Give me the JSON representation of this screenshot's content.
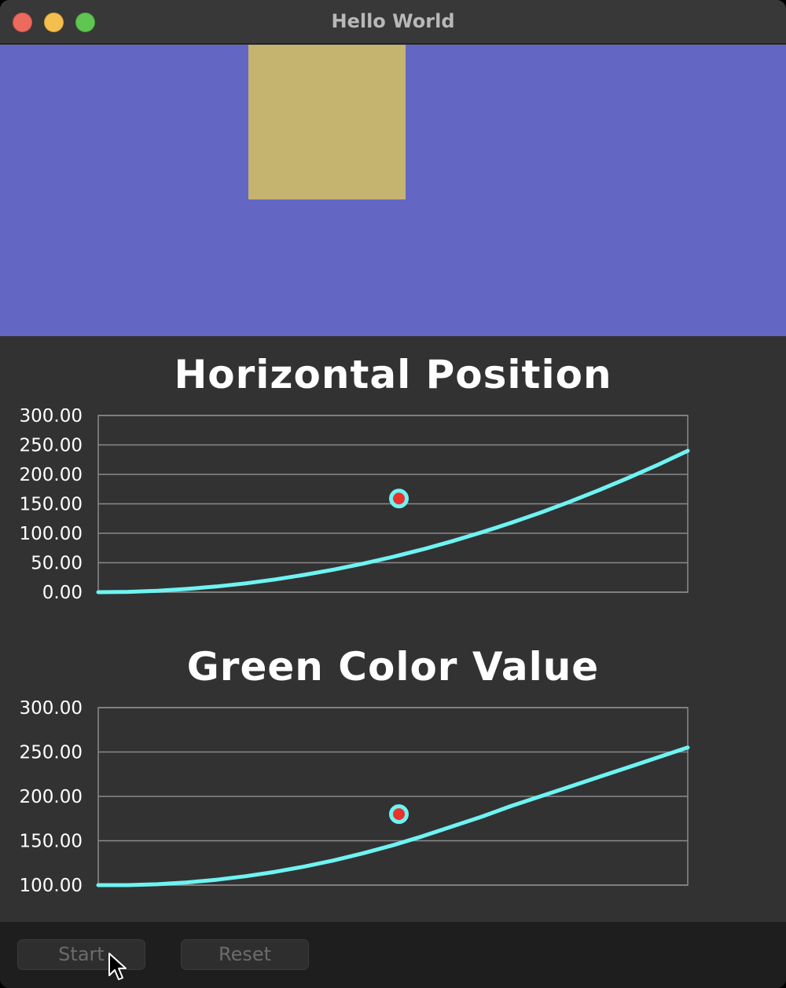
{
  "window": {
    "title": "Hello World"
  },
  "canvas": {
    "background": "#6367c3",
    "square_color": "#c5b46f"
  },
  "chart_data": [
    {
      "type": "line",
      "title": "Horizontal Position",
      "xlabel": "",
      "ylabel": "",
      "ylim": [
        0,
        300
      ],
      "yticks": [
        "0.00",
        "50.00",
        "100.00",
        "150.00",
        "200.00",
        "250.00",
        "300.00"
      ],
      "x": [
        0,
        0.05,
        0.1,
        0.15,
        0.2,
        0.25,
        0.3,
        0.35,
        0.4,
        0.45,
        0.5,
        0.55,
        0.6,
        0.65,
        0.7,
        0.75,
        0.8,
        0.85,
        0.9,
        0.95,
        1.0
      ],
      "series": [
        {
          "values": [
            0,
            0.6,
            2.4,
            5.4,
            9.6,
            15,
            21.6,
            29.4,
            38.4,
            48.6,
            60,
            72.6,
            86.4,
            101.4,
            117.6,
            135,
            153.6,
            173.4,
            194.4,
            216.6,
            240
          ],
          "color": "#6ff3f3"
        }
      ],
      "marker": {
        "x": 0.51,
        "y": 159
      },
      "grid": true,
      "line_color": "#6ff3f3",
      "marker_color": "#e8322c"
    },
    {
      "type": "line",
      "title": "Green Color Value",
      "xlabel": "",
      "ylabel": "",
      "ylim": [
        100,
        300
      ],
      "yticks": [
        "100.00",
        "150.00",
        "200.00",
        "250.00",
        "300.00"
      ],
      "x": [
        0,
        0.05,
        0.1,
        0.15,
        0.2,
        0.25,
        0.3,
        0.35,
        0.4,
        0.45,
        0.5,
        0.55,
        0.6,
        0.65,
        0.7,
        0.75,
        0.8,
        0.85,
        0.9,
        0.95,
        1.0
      ],
      "series": [
        {
          "values": [
            100,
            100,
            101,
            103,
            106,
            110,
            115,
            121,
            128,
            136,
            145,
            155,
            166,
            177,
            189,
            200,
            211,
            222,
            233,
            244,
            255
          ],
          "color": "#6ff3f3"
        }
      ],
      "marker": {
        "x": 0.51,
        "y": 180
      },
      "grid": true,
      "line_color": "#6ff3f3",
      "marker_color": "#e8322c"
    }
  ],
  "buttons": {
    "start_label": "Start",
    "reset_label": "Reset"
  }
}
